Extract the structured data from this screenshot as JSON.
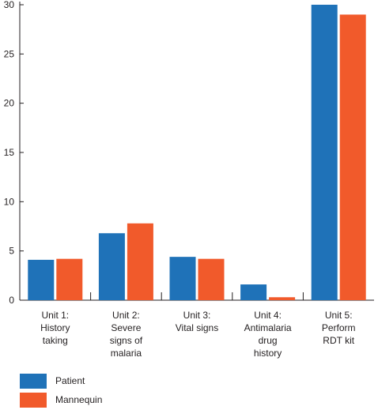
{
  "chart_data": {
    "type": "bar",
    "categories": [
      [
        "Unit 1:",
        "History",
        "taking"
      ],
      [
        "Unit 2:",
        "Severe",
        "signs of",
        "malaria"
      ],
      [
        "Unit 3:",
        "Vital signs"
      ],
      [
        "Unit 4:",
        "Antimalaria",
        "drug",
        "history"
      ],
      [
        "Unit 5:",
        "Perform",
        "RDT kit"
      ]
    ],
    "series": [
      {
        "name": "Patient",
        "color": "#1f72b8",
        "values": [
          4.1,
          6.8,
          4.4,
          1.6,
          30
        ]
      },
      {
        "name": "Mannequin",
        "color": "#f15a2b",
        "values": [
          4.2,
          7.8,
          4.2,
          0.3,
          29
        ]
      }
    ],
    "yticks": [
      0,
      5,
      10,
      15,
      20,
      25,
      30
    ],
    "ylim": [
      0,
      30
    ],
    "title": "",
    "xlabel": "",
    "ylabel": "",
    "grid": false,
    "legend_position": "bottom-left"
  }
}
